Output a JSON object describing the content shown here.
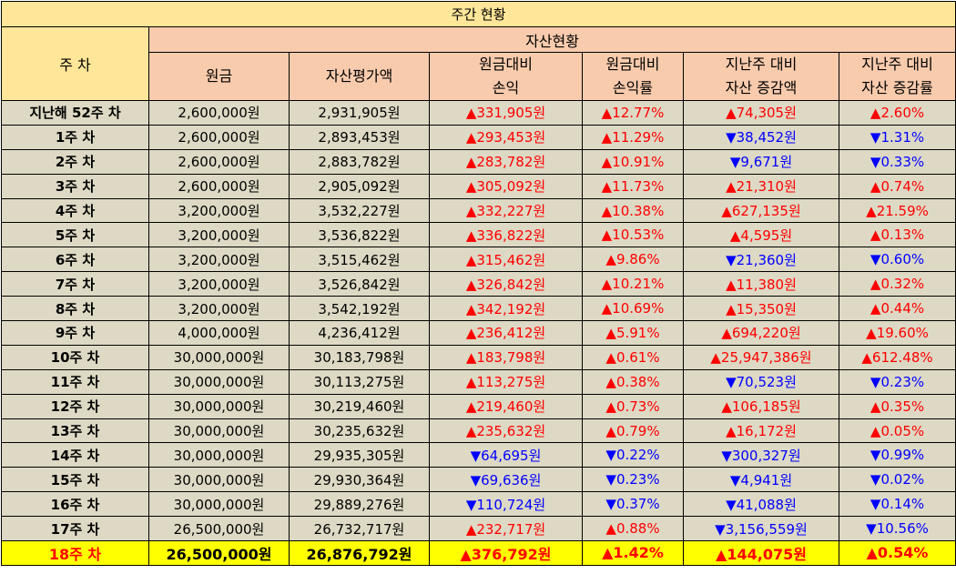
{
  "title": "주간 현황",
  "headers": {
    "week": "주 차",
    "group": "자산현황",
    "principal": "원금",
    "asset_value": "자산평가액",
    "profit_l1": "원금대비",
    "profit_l2": "손익",
    "rate_l1": "원금대비",
    "rate_l2": "손익률",
    "wk_change_l1": "지난주 대비",
    "wk_change_l2": "자산 증감액",
    "wk_rate_l1": "지난주 대비",
    "wk_rate_l2": "자산 증감률"
  },
  "colors": {
    "up": "#ff0000",
    "down": "#0000ff",
    "header_bg": "#f8cbad",
    "side_bg": "#ffe699",
    "row_bg": "#ddd9c4",
    "highlight_bg": "#ffff00"
  },
  "rows": [
    {
      "week": "지난해 52주 차",
      "principal": "2,600,000원",
      "asset": "2,931,905원",
      "profit": "▲331,905원",
      "profit_dir": "up",
      "rate": "▲12.77%",
      "rate_dir": "up",
      "change": "▲74,305원",
      "change_dir": "up",
      "change_rate": "▲2.60%",
      "change_rate_dir": "up"
    },
    {
      "week": "1주 차",
      "principal": "2,600,000원",
      "asset": "2,893,453원",
      "profit": "▲293,453원",
      "profit_dir": "up",
      "rate": "▲11.29%",
      "rate_dir": "up",
      "change": "▼38,452원",
      "change_dir": "down",
      "change_rate": "▼1.31%",
      "change_rate_dir": "down"
    },
    {
      "week": "2주 차",
      "principal": "2,600,000원",
      "asset": "2,883,782원",
      "profit": "▲283,782원",
      "profit_dir": "up",
      "rate": "▲10.91%",
      "rate_dir": "up",
      "change": "▼9,671원",
      "change_dir": "down",
      "change_rate": "▼0.33%",
      "change_rate_dir": "down"
    },
    {
      "week": "3주 차",
      "principal": "2,600,000원",
      "asset": "2,905,092원",
      "profit": "▲305,092원",
      "profit_dir": "up",
      "rate": "▲11.73%",
      "rate_dir": "up",
      "change": "▲21,310원",
      "change_dir": "up",
      "change_rate": "▲0.74%",
      "change_rate_dir": "up"
    },
    {
      "week": "4주 차",
      "principal": "3,200,000원",
      "asset": "3,532,227원",
      "profit": "▲332,227원",
      "profit_dir": "up",
      "rate": "▲10.38%",
      "rate_dir": "up",
      "change": "▲627,135원",
      "change_dir": "up",
      "change_rate": "▲21.59%",
      "change_rate_dir": "up"
    },
    {
      "week": "5주 차",
      "principal": "3,200,000원",
      "asset": "3,536,822원",
      "profit": "▲336,822원",
      "profit_dir": "up",
      "rate": "▲10.53%",
      "rate_dir": "up",
      "change": "▲4,595원",
      "change_dir": "up",
      "change_rate": "▲0.13%",
      "change_rate_dir": "up"
    },
    {
      "week": "6주 차",
      "principal": "3,200,000원",
      "asset": "3,515,462원",
      "profit": "▲315,462원",
      "profit_dir": "up",
      "rate": "▲9.86%",
      "rate_dir": "up",
      "change": "▼21,360원",
      "change_dir": "down",
      "change_rate": "▼0.60%",
      "change_rate_dir": "down"
    },
    {
      "week": "7주 차",
      "principal": "3,200,000원",
      "asset": "3,526,842원",
      "profit": "▲326,842원",
      "profit_dir": "up",
      "rate": "▲10.21%",
      "rate_dir": "up",
      "change": "▲11,380원",
      "change_dir": "up",
      "change_rate": "▲0.32%",
      "change_rate_dir": "up"
    },
    {
      "week": "8주 차",
      "principal": "3,200,000원",
      "asset": "3,542,192원",
      "profit": "▲342,192원",
      "profit_dir": "up",
      "rate": "▲10.69%",
      "rate_dir": "up",
      "change": "▲15,350원",
      "change_dir": "up",
      "change_rate": "▲0.44%",
      "change_rate_dir": "up"
    },
    {
      "week": "9주 차",
      "principal": "4,000,000원",
      "asset": "4,236,412원",
      "profit": "▲236,412원",
      "profit_dir": "up",
      "rate": "▲5.91%",
      "rate_dir": "up",
      "change": "▲694,220원",
      "change_dir": "up",
      "change_rate": "▲19.60%",
      "change_rate_dir": "up"
    },
    {
      "week": "10주 차",
      "principal": "30,000,000원",
      "asset": "30,183,798원",
      "profit": "▲183,798원",
      "profit_dir": "up",
      "rate": "▲0.61%",
      "rate_dir": "up",
      "change": "▲25,947,386원",
      "change_dir": "up",
      "change_rate": "▲612.48%",
      "change_rate_dir": "up"
    },
    {
      "week": "11주 차",
      "principal": "30,000,000원",
      "asset": "30,113,275원",
      "profit": "▲113,275원",
      "profit_dir": "up",
      "rate": "▲0.38%",
      "rate_dir": "up",
      "change": "▼70,523원",
      "change_dir": "down",
      "change_rate": "▼0.23%",
      "change_rate_dir": "down"
    },
    {
      "week": "12주 차",
      "principal": "30,000,000원",
      "asset": "30,219,460원",
      "profit": "▲219,460원",
      "profit_dir": "up",
      "rate": "▲0.73%",
      "rate_dir": "up",
      "change": "▲106,185원",
      "change_dir": "up",
      "change_rate": "▲0.35%",
      "change_rate_dir": "up"
    },
    {
      "week": "13주 차",
      "principal": "30,000,000원",
      "asset": "30,235,632원",
      "profit": "▲235,632원",
      "profit_dir": "up",
      "rate": "▲0.79%",
      "rate_dir": "up",
      "change": "▲16,172원",
      "change_dir": "up",
      "change_rate": "▲0.05%",
      "change_rate_dir": "up"
    },
    {
      "week": "14주 차",
      "principal": "30,000,000원",
      "asset": "29,935,305원",
      "profit": "▼64,695원",
      "profit_dir": "down",
      "rate": "▼0.22%",
      "rate_dir": "down",
      "change": "▼300,327원",
      "change_dir": "down",
      "change_rate": "▼0.99%",
      "change_rate_dir": "down"
    },
    {
      "week": "15주 차",
      "principal": "30,000,000원",
      "asset": "29,930,364원",
      "profit": "▼69,636원",
      "profit_dir": "down",
      "rate": "▼0.23%",
      "rate_dir": "down",
      "change": "▼4,941원",
      "change_dir": "down",
      "change_rate": "▼0.02%",
      "change_rate_dir": "down"
    },
    {
      "week": "16주 차",
      "principal": "30,000,000원",
      "asset": "29,889,276원",
      "profit": "▼110,724원",
      "profit_dir": "down",
      "rate": "▼0.37%",
      "rate_dir": "down",
      "change": "▼41,088원",
      "change_dir": "down",
      "change_rate": "▼0.14%",
      "change_rate_dir": "down"
    },
    {
      "week": "17주 차",
      "principal": "26,500,000원",
      "asset": "26,732,717원",
      "profit": "▲232,717원",
      "profit_dir": "up",
      "rate": "▲0.88%",
      "rate_dir": "up",
      "change": "▼3,156,559원",
      "change_dir": "down",
      "change_rate": "▼10.56%",
      "change_rate_dir": "down"
    },
    {
      "week": "18주 차",
      "principal": "26,500,000원",
      "asset": "26,876,792원",
      "profit": "▲376,792원",
      "profit_dir": "up",
      "rate": "▲1.42%",
      "rate_dir": "up",
      "change": "▲144,075원",
      "change_dir": "up",
      "change_rate": "▲0.54%",
      "change_rate_dir": "up"
    }
  ]
}
